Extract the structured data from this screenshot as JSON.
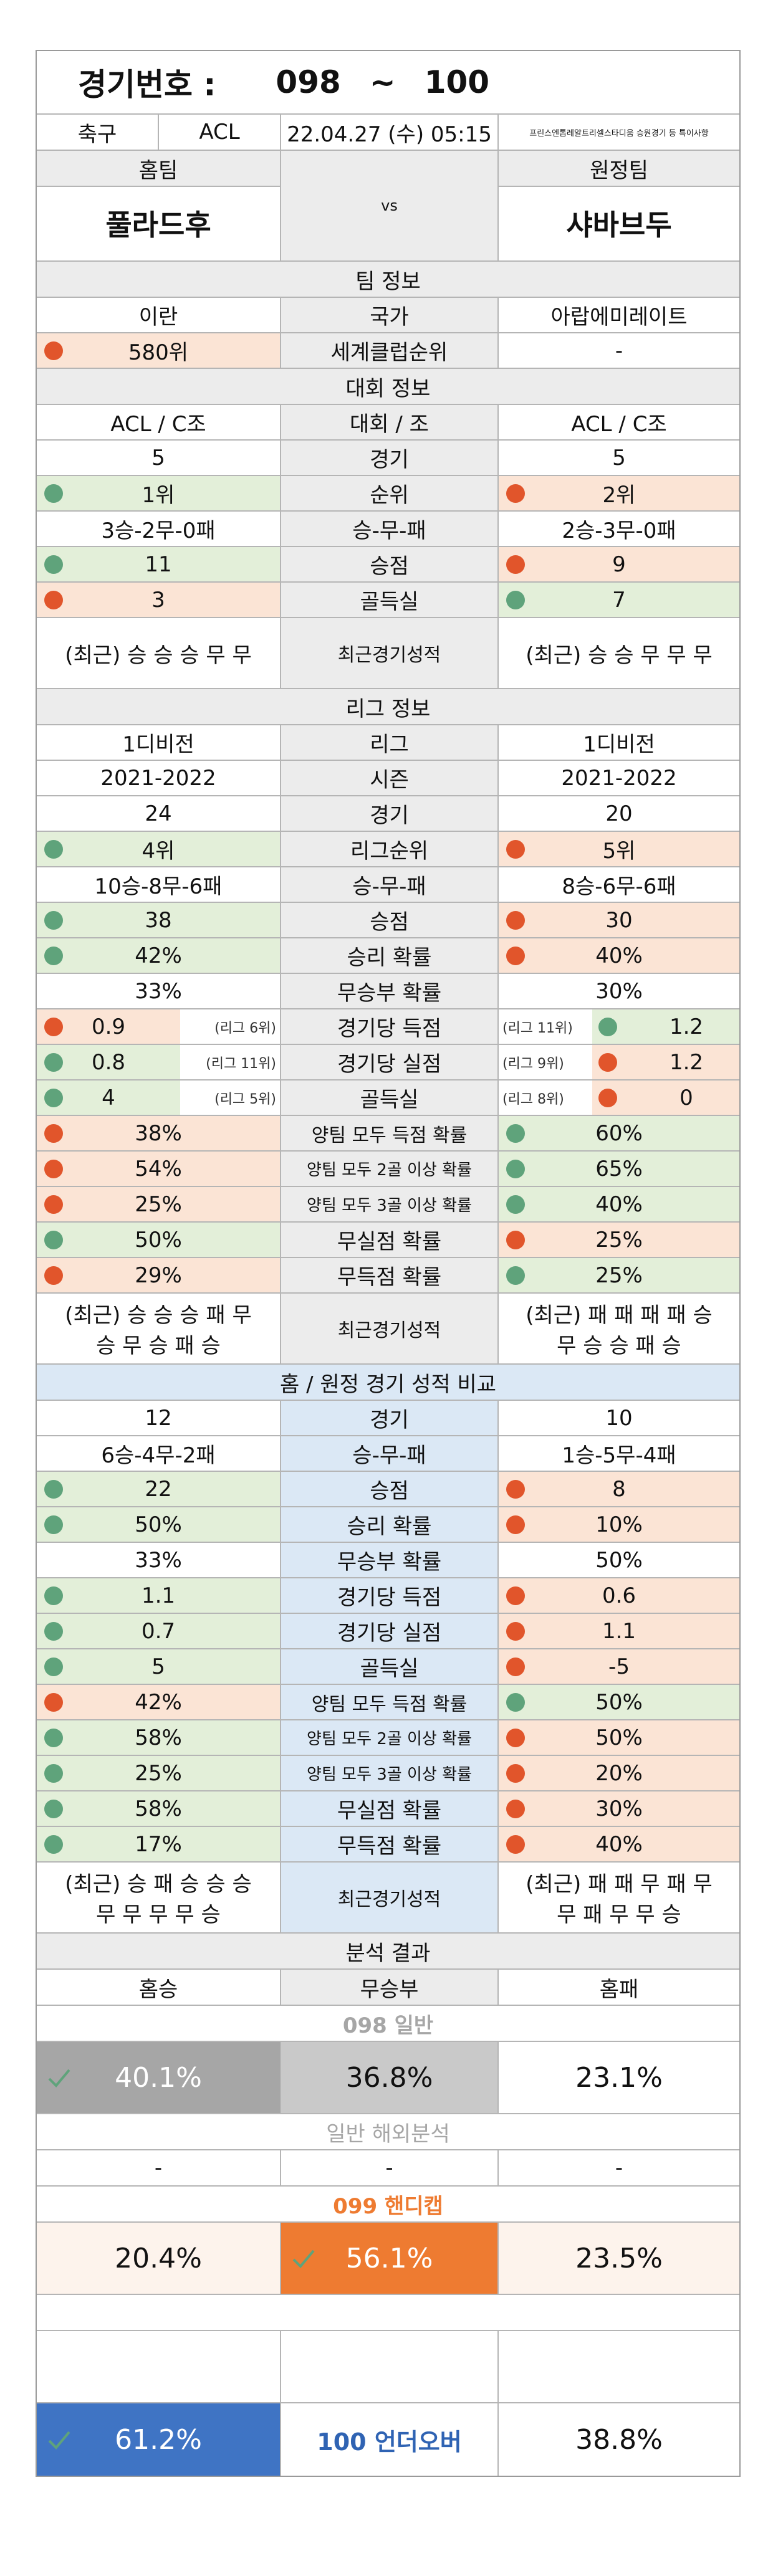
{
  "header": {
    "label": "경기번호 :",
    "from": "098",
    "sep": "~",
    "to": "100"
  },
  "info": {
    "sport": "축구",
    "league": "ACL",
    "datetime": "22.04.27 (수) 05:15",
    "notice": "프린스엔톱레알트리셀스타디움 승원경기 등 특이사항"
  },
  "teams": {
    "home_label": "홈팀",
    "away_label": "원정팀",
    "home": "풀라드후",
    "vs": "vs",
    "away": "샤바브두"
  },
  "team_info": {
    "title": "팀 정보",
    "rows": [
      {
        "home": "이란",
        "label": "국가",
        "away": "아랍에미레이트"
      },
      {
        "home": "580위",
        "label": "세계클럽순위",
        "away": "-"
      }
    ]
  },
  "tournament": {
    "title": "대회 정보",
    "rows": [
      {
        "home": "ACL / C조",
        "label": "대회 / 조",
        "away": "ACL / C조"
      },
      {
        "home": "5",
        "label": "경기",
        "away": "5"
      },
      {
        "home": "1위",
        "label": "순위",
        "away": "2위"
      },
      {
        "home": "3승-2무-0패",
        "label": "승-무-패",
        "away": "2승-3무-0패"
      },
      {
        "home": "11",
        "label": "승점",
        "away": "9"
      },
      {
        "home": "3",
        "label": "골득실",
        "away": "7"
      },
      {
        "home": "(최근) 승 승 승 무 무",
        "label": "최근경기성적",
        "away": "(최근) 승 승 무 무 무"
      }
    ]
  },
  "league": {
    "title": "리그 정보",
    "rows": [
      {
        "home": "1디비전",
        "label": "리그",
        "away": "1디비전"
      },
      {
        "home": "2021-2022",
        "label": "시즌",
        "away": "2021-2022"
      },
      {
        "home": "24",
        "label": "경기",
        "away": "20"
      },
      {
        "home": "4위",
        "label": "리그순위",
        "away": "5위"
      },
      {
        "home": "10승-8무-6패",
        "label": "승-무-패",
        "away": "8승-6무-6패"
      },
      {
        "home": "38",
        "label": "승점",
        "away": "30"
      },
      {
        "home": "42%",
        "label": "승리 확률",
        "away": "40%"
      },
      {
        "home": "33%",
        "label": "무승부 확률",
        "away": "30%"
      },
      {
        "home": "0.9",
        "home_note": "(리그 6위)",
        "label": "경기당 득점",
        "away": "1.2",
        "away_note": "(리그 11위)"
      },
      {
        "home": "0.8",
        "home_note": "(리그 11위)",
        "label": "경기당 실점",
        "away": "1.2",
        "away_note": "(리그 9위)"
      },
      {
        "home": "4",
        "home_note": "(리그 5위)",
        "label": "골득실",
        "away": "0",
        "away_note": "(리그 8위)"
      },
      {
        "home": "38%",
        "label": "양팀 모두 득점 확률",
        "away": "60%"
      },
      {
        "home": "54%",
        "label": "양팀 모두 2골 이상 확률",
        "away": "65%"
      },
      {
        "home": "25%",
        "label": "양팀 모두 3골 이상 확률",
        "away": "40%"
      },
      {
        "home": "50%",
        "label": "무실점 확률",
        "away": "25%"
      },
      {
        "home": "29%",
        "label": "무득점 확률",
        "away": "25%"
      },
      {
        "home1": "(최근) 승 승 승 패 무",
        "home2": "승 무 승 패 승",
        "label": "최근경기성적",
        "away1": "(최근) 패 패 패 패 승",
        "away2": "무 승 승 패 승"
      }
    ]
  },
  "homeaway": {
    "title": "홈 / 원정 경기 성적 비교",
    "rows": [
      {
        "home": "12",
        "label": "경기",
        "away": "10"
      },
      {
        "home": "6승-4무-2패",
        "label": "승-무-패",
        "away": "1승-5무-4패"
      },
      {
        "home": "22",
        "label": "승점",
        "away": "8"
      },
      {
        "home": "50%",
        "label": "승리 확률",
        "away": "10%"
      },
      {
        "home": "33%",
        "label": "무승부 확률",
        "away": "50%"
      },
      {
        "home": "1.1",
        "label": "경기당 득점",
        "away": "0.6"
      },
      {
        "home": "0.7",
        "label": "경기당 실점",
        "away": "1.1"
      },
      {
        "home": "5",
        "label": "골득실",
        "away": "-5"
      },
      {
        "home": "42%",
        "label": "양팀 모두 득점 확률",
        "away": "50%"
      },
      {
        "home": "58%",
        "label": "양팀 모두 2골 이상 확률",
        "away": "50%"
      },
      {
        "home": "25%",
        "label": "양팀 모두 3골 이상 확률",
        "away": "20%"
      },
      {
        "home": "58%",
        "label": "무실점 확률",
        "away": "30%"
      },
      {
        "home": "17%",
        "label": "무득점 확률",
        "away": "40%"
      },
      {
        "home1": "(최근) 승 패 승 승 승",
        "home2": "무 무 무 무 승",
        "label": "최근경기성적",
        "away1": "(최근) 패 패 무 패 무",
        "away2": "무 패 무 무 승"
      }
    ]
  },
  "analysis": {
    "title": "분석 결과",
    "cols": [
      "홈승",
      "무승부",
      "홈패"
    ],
    "general_label": "098 일반",
    "general": [
      "40.1%",
      "36.8%",
      "23.1%"
    ],
    "overseas_label": "일반 해외분석",
    "overseas": [
      "-",
      "-",
      "-"
    ],
    "handicap_label": "099 핸디캡",
    "handicap": [
      "20.4%",
      "56.1%",
      "23.5%"
    ],
    "underover": [
      "61.2%",
      "100 언더오버",
      "38.8%"
    ]
  },
  "colors": {
    "green": "#5fa37b",
    "orange": "#e1552b",
    "blue_pick": "#3f74c4",
    "orange_pick": "#ee7b31",
    "gray_pick": "#a6a6a6"
  }
}
